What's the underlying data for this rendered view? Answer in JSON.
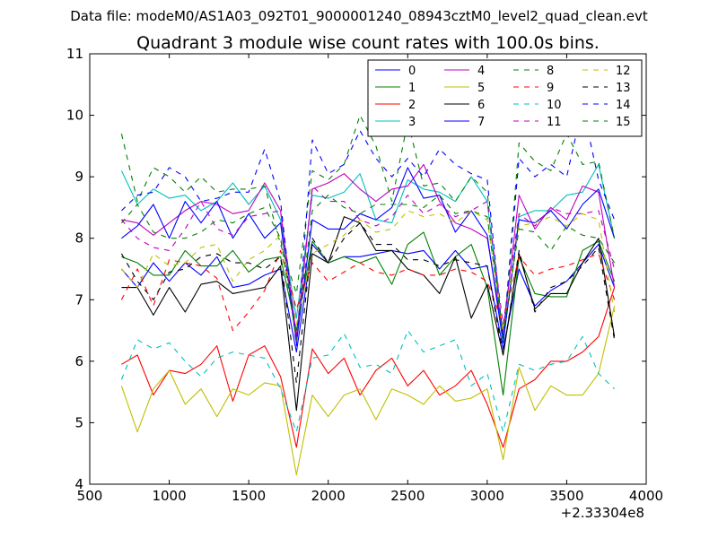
{
  "figure": {
    "suptitle": "Data file: modeM0/AS1A03_092T01_9000001240_08943cztM0_level2_quad_clean.evt",
    "title": "Quadrant 3 module wise count rates with 100.0s bins.",
    "x_offset_label": "+2.33304e8"
  },
  "chart_data": {
    "type": "line",
    "title": "Quadrant 3 module wise count rates with 100.0s bins.",
    "xlabel": "",
    "ylabel": "",
    "xlim": [
      500,
      4000
    ],
    "ylim": [
      4,
      11
    ],
    "xticks": [
      500,
      1000,
      1500,
      2000,
      2500,
      3000,
      3500,
      4000
    ],
    "yticks": [
      4,
      5,
      6,
      7,
      8,
      9,
      10,
      11
    ],
    "x_offset": "+2.33304e8",
    "legend_position": "top-right",
    "x": [
      700,
      800,
      900,
      1000,
      1100,
      1200,
      1300,
      1400,
      1500,
      1600,
      1700,
      1800,
      1900,
      2000,
      2100,
      2200,
      2300,
      2400,
      2500,
      2600,
      2700,
      2800,
      2900,
      3000,
      3100,
      3200,
      3300,
      3400,
      3500,
      3600,
      3700,
      3800
    ],
    "series": [
      {
        "name": "0",
        "color": "#0000ff",
        "dash": "solid",
        "values": [
          7.5,
          7.2,
          7.6,
          7.3,
          7.6,
          7.4,
          7.7,
          7.2,
          7.25,
          7.4,
          7.5,
          6.15,
          7.9,
          7.6,
          7.7,
          7.7,
          7.75,
          7.8,
          7.75,
          7.8,
          7.5,
          7.8,
          7.5,
          7.55,
          6.2,
          7.5,
          6.9,
          7.15,
          7.3,
          7.6,
          7.9,
          7.2
        ]
      },
      {
        "name": "1",
        "color": "#008000",
        "dash": "solid",
        "values": [
          7.7,
          7.6,
          7.4,
          7.4,
          7.8,
          7.55,
          7.55,
          7.8,
          7.45,
          7.65,
          7.7,
          6.5,
          7.95,
          7.6,
          7.7,
          7.6,
          7.7,
          7.25,
          7.9,
          8.1,
          7.4,
          7.7,
          7.9,
          7.2,
          5.45,
          7.7,
          7.1,
          7.05,
          7.05,
          7.8,
          7.95,
          7.3
        ]
      },
      {
        "name": "2",
        "color": "#ff0000",
        "dash": "solid",
        "values": [
          5.95,
          6.1,
          5.45,
          5.85,
          5.8,
          5.95,
          6.25,
          5.35,
          6.1,
          6.25,
          5.75,
          4.6,
          6.2,
          5.8,
          6.05,
          5.45,
          5.85,
          6.05,
          5.6,
          5.85,
          5.45,
          5.6,
          5.85,
          5.3,
          4.6,
          5.55,
          5.7,
          6.0,
          6.0,
          6.15,
          6.4,
          7.2
        ]
      },
      {
        "name": "3",
        "color": "#00bfbf",
        "dash": "solid",
        "values": [
          9.1,
          8.55,
          8.8,
          8.65,
          8.7,
          8.45,
          8.6,
          8.9,
          8.55,
          8.85,
          8.3,
          6.7,
          8.7,
          8.65,
          8.75,
          9.05,
          8.3,
          8.25,
          8.95,
          8.8,
          8.75,
          8.6,
          9.0,
          8.6,
          6.3,
          8.35,
          8.45,
          8.45,
          8.7,
          8.75,
          9.2,
          8.0
        ]
      },
      {
        "name": "4",
        "color": "#bf00bf",
        "dash": "solid",
        "values": [
          8.3,
          8.25,
          8.05,
          8.25,
          8.45,
          8.6,
          8.55,
          8.4,
          8.45,
          8.9,
          8.45,
          6.4,
          8.8,
          8.9,
          9.05,
          8.8,
          8.6,
          8.8,
          8.85,
          9.2,
          8.6,
          8.25,
          8.15,
          8.0,
          6.45,
          8.7,
          8.15,
          8.5,
          8.3,
          8.85,
          8.75,
          7.2
        ]
      },
      {
        "name": "5",
        "color": "#bfbf00",
        "dash": "solid",
        "values": [
          5.6,
          4.85,
          5.55,
          5.85,
          5.3,
          5.55,
          5.1,
          5.55,
          5.45,
          5.65,
          5.6,
          4.15,
          5.45,
          5.1,
          5.45,
          5.55,
          5.05,
          5.55,
          5.45,
          5.3,
          5.6,
          5.35,
          5.4,
          5.55,
          4.4,
          5.9,
          5.2,
          5.6,
          5.45,
          5.45,
          5.8,
          6.9
        ]
      },
      {
        "name": "6",
        "color": "#000000",
        "dash": "solid",
        "values": [
          7.2,
          7.2,
          6.75,
          7.2,
          6.8,
          7.25,
          7.3,
          7.1,
          7.15,
          7.2,
          7.55,
          5.2,
          7.75,
          7.6,
          8.35,
          8.25,
          7.8,
          7.8,
          7.5,
          7.4,
          7.1,
          7.7,
          6.7,
          7.25,
          6.1,
          7.75,
          6.85,
          7.1,
          7.1,
          7.6,
          8.0,
          6.4
        ]
      },
      {
        "name": "7",
        "color": "#0000ff",
        "dash": "solid",
        "values": [
          8.0,
          8.2,
          8.55,
          8.0,
          8.6,
          8.25,
          8.6,
          8.0,
          8.4,
          8.0,
          8.25,
          6.3,
          8.3,
          8.15,
          8.15,
          8.4,
          8.3,
          8.5,
          9.15,
          8.65,
          8.7,
          8.1,
          8.45,
          8.05,
          6.3,
          8.3,
          8.25,
          8.45,
          8.15,
          8.55,
          8.8,
          8.0
        ]
      },
      {
        "name": "8",
        "color": "#008000",
        "dash": "dashed",
        "values": [
          9.7,
          8.6,
          9.15,
          9.0,
          8.75,
          9.0,
          8.75,
          8.8,
          8.8,
          8.85,
          7.9,
          7.1,
          9.1,
          8.95,
          9.2,
          10.0,
          9.5,
          8.6,
          9.9,
          8.85,
          8.9,
          8.6,
          9.0,
          8.75,
          6.3,
          9.55,
          9.25,
          9.1,
          9.7,
          9.2,
          9.25,
          8.0
        ]
      },
      {
        "name": "9",
        "color": "#ff0000",
        "dash": "dashed",
        "values": [
          7.0,
          7.5,
          6.9,
          7.65,
          7.6,
          7.55,
          7.35,
          6.5,
          6.8,
          7.15,
          7.8,
          6.85,
          7.6,
          7.3,
          7.45,
          7.6,
          7.45,
          7.4,
          7.5,
          7.4,
          7.4,
          7.5,
          7.45,
          7.3,
          6.6,
          7.7,
          7.4,
          7.5,
          7.55,
          7.65,
          7.75,
          7.0
        ]
      },
      {
        "name": "10",
        "color": "#00bfbf",
        "dash": "dashed",
        "values": [
          5.7,
          6.35,
          6.2,
          6.3,
          6.0,
          5.75,
          6.05,
          6.15,
          6.1,
          6.05,
          5.55,
          4.85,
          6.05,
          6.1,
          6.45,
          5.9,
          5.95,
          5.8,
          6.5,
          6.15,
          6.25,
          6.35,
          5.6,
          5.8,
          4.85,
          5.95,
          5.85,
          5.95,
          6.0,
          6.4,
          5.8,
          5.55
        ]
      },
      {
        "name": "11",
        "color": "#bf00bf",
        "dash": "dashed",
        "values": [
          8.3,
          8.0,
          7.85,
          7.8,
          8.15,
          8.6,
          8.15,
          8.05,
          8.35,
          8.4,
          8.45,
          6.3,
          8.85,
          8.6,
          8.6,
          8.3,
          8.2,
          8.35,
          8.7,
          8.4,
          8.55,
          8.35,
          8.45,
          8.6,
          6.6,
          8.4,
          8.2,
          8.5,
          8.4,
          8.4,
          8.45,
          7.5
        ]
      },
      {
        "name": "12",
        "color": "#bfbf00",
        "dash": "dashed",
        "values": [
          7.5,
          7.2,
          7.75,
          7.55,
          7.6,
          7.85,
          7.9,
          7.3,
          7.65,
          7.8,
          8.05,
          6.6,
          7.75,
          7.9,
          8.05,
          8.3,
          8.1,
          8.15,
          8.45,
          8.35,
          8.4,
          8.25,
          8.45,
          8.3,
          6.5,
          8.2,
          8.25,
          8.35,
          8.2,
          8.4,
          8.3,
          6.8
        ]
      },
      {
        "name": "13",
        "color": "#000000",
        "dash": "dashed",
        "values": [
          7.75,
          7.3,
          7.0,
          7.45,
          7.5,
          7.7,
          7.75,
          7.6,
          7.6,
          7.5,
          7.7,
          5.65,
          8.0,
          7.6,
          8.0,
          8.25,
          7.9,
          7.9,
          7.65,
          7.65,
          7.55,
          7.65,
          7.6,
          7.55,
          6.1,
          7.8,
          6.8,
          7.2,
          7.3,
          7.55,
          7.85,
          6.35
        ]
      },
      {
        "name": "14",
        "color": "#0000ff",
        "dash": "dashed",
        "values": [
          8.45,
          8.7,
          8.75,
          9.15,
          9.0,
          8.6,
          8.65,
          8.75,
          8.75,
          9.45,
          8.6,
          6.25,
          9.6,
          9.05,
          9.2,
          9.75,
          9.3,
          9.0,
          9.3,
          9.0,
          9.45,
          9.2,
          9.05,
          8.95,
          6.35,
          9.3,
          9.0,
          9.2,
          9.0,
          10.15,
          8.95,
          8.3
        ]
      },
      {
        "name": "15",
        "color": "#008000",
        "dash": "dashed",
        "values": [
          8.25,
          8.55,
          8.1,
          8.0,
          8.0,
          8.1,
          8.3,
          8.25,
          8.4,
          8.5,
          8.0,
          6.35,
          8.45,
          8.7,
          8.5,
          8.4,
          8.55,
          8.55,
          8.55,
          8.5,
          8.7,
          8.4,
          8.45,
          8.35,
          6.45,
          8.15,
          8.1,
          7.8,
          8.2,
          8.05,
          8.0,
          7.6
        ]
      }
    ]
  }
}
